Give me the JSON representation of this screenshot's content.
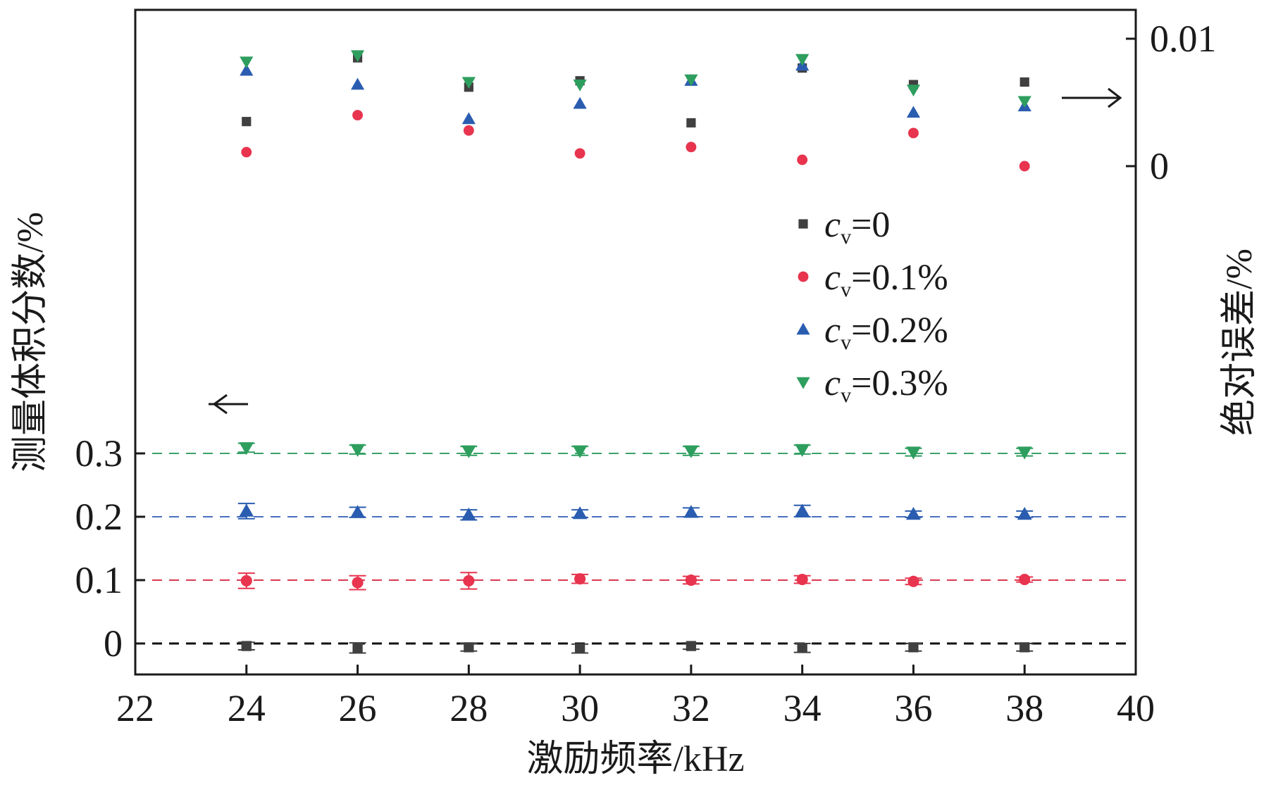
{
  "chart_data": {
    "type": "scatter",
    "xlabel": "激励频率/kHz",
    "ylabel_left": "测量体积分数/%",
    "ylabel_right": "绝对误差/%",
    "x_ticks": [
      "22",
      "24",
      "26",
      "28",
      "30",
      "32",
      "34",
      "36",
      "38",
      "40"
    ],
    "xlim": [
      22,
      40
    ],
    "left_ticks": [
      "0",
      "0.1",
      "0.2",
      "0.3"
    ],
    "right_ticks": [
      "0",
      "0.01"
    ],
    "x": [
      24,
      26,
      28,
      30,
      32,
      34,
      36,
      38
    ],
    "reference_lines": [
      0,
      0.1,
      0.2,
      0.3
    ],
    "legend_position": "middle-right",
    "series": [
      {
        "name": "c_v=0",
        "legend_prefix": "c",
        "legend_sub": "v",
        "legend_suffix": "=0",
        "color": "#404040",
        "marker": "square",
        "measured": [
          -0.004,
          -0.007,
          -0.006,
          -0.008,
          -0.004,
          -0.007,
          -0.006,
          -0.006
        ],
        "measured_err": [
          0.006,
          0.008,
          0.006,
          0.007,
          0.005,
          0.007,
          0.006,
          0.006
        ],
        "abs_error": [
          0.0035,
          0.0085,
          0.0062,
          0.0067,
          0.0034,
          0.0077,
          0.0064,
          0.0066
        ]
      },
      {
        "name": "c_v=0.1%",
        "legend_prefix": "c",
        "legend_sub": "v",
        "legend_suffix": "=0.1%",
        "color": "#e8344e",
        "marker": "circle",
        "measured": [
          0.099,
          0.096,
          0.099,
          0.102,
          0.1,
          0.101,
          0.098,
          0.101
        ],
        "measured_err": [
          0.012,
          0.011,
          0.013,
          0.007,
          0.006,
          0.006,
          0.005,
          0.004
        ],
        "abs_error": [
          0.0011,
          0.004,
          0.0028,
          0.001,
          0.0015,
          0.0005,
          0.0026,
          0.0
        ]
      },
      {
        "name": "c_v=0.2%",
        "legend_prefix": "c",
        "legend_sub": "v",
        "legend_suffix": "=0.2%",
        "color": "#2a5db0",
        "marker": "triangle-up",
        "measured": [
          0.209,
          0.207,
          0.203,
          0.205,
          0.207,
          0.209,
          0.204,
          0.204
        ],
        "measured_err": [
          0.012,
          0.008,
          0.008,
          0.006,
          0.007,
          0.009,
          0.005,
          0.005
        ],
        "abs_error": [
          0.0075,
          0.0064,
          0.0037,
          0.0049,
          0.0067,
          0.0079,
          0.0042,
          0.0047
        ]
      },
      {
        "name": "c_v=0.3%",
        "legend_prefix": "c",
        "legend_sub": "v",
        "legend_suffix": "=0.3%",
        "color": "#2e9e5e",
        "marker": "triangle-down",
        "measured": [
          0.309,
          0.306,
          0.304,
          0.304,
          0.304,
          0.306,
          0.302,
          0.302
        ],
        "measured_err": [
          0.007,
          0.007,
          0.007,
          0.007,
          0.007,
          0.007,
          0.006,
          0.006
        ],
        "abs_error": [
          0.0082,
          0.0087,
          0.0066,
          0.0064,
          0.0068,
          0.0084,
          0.006,
          0.0051
        ]
      }
    ]
  }
}
